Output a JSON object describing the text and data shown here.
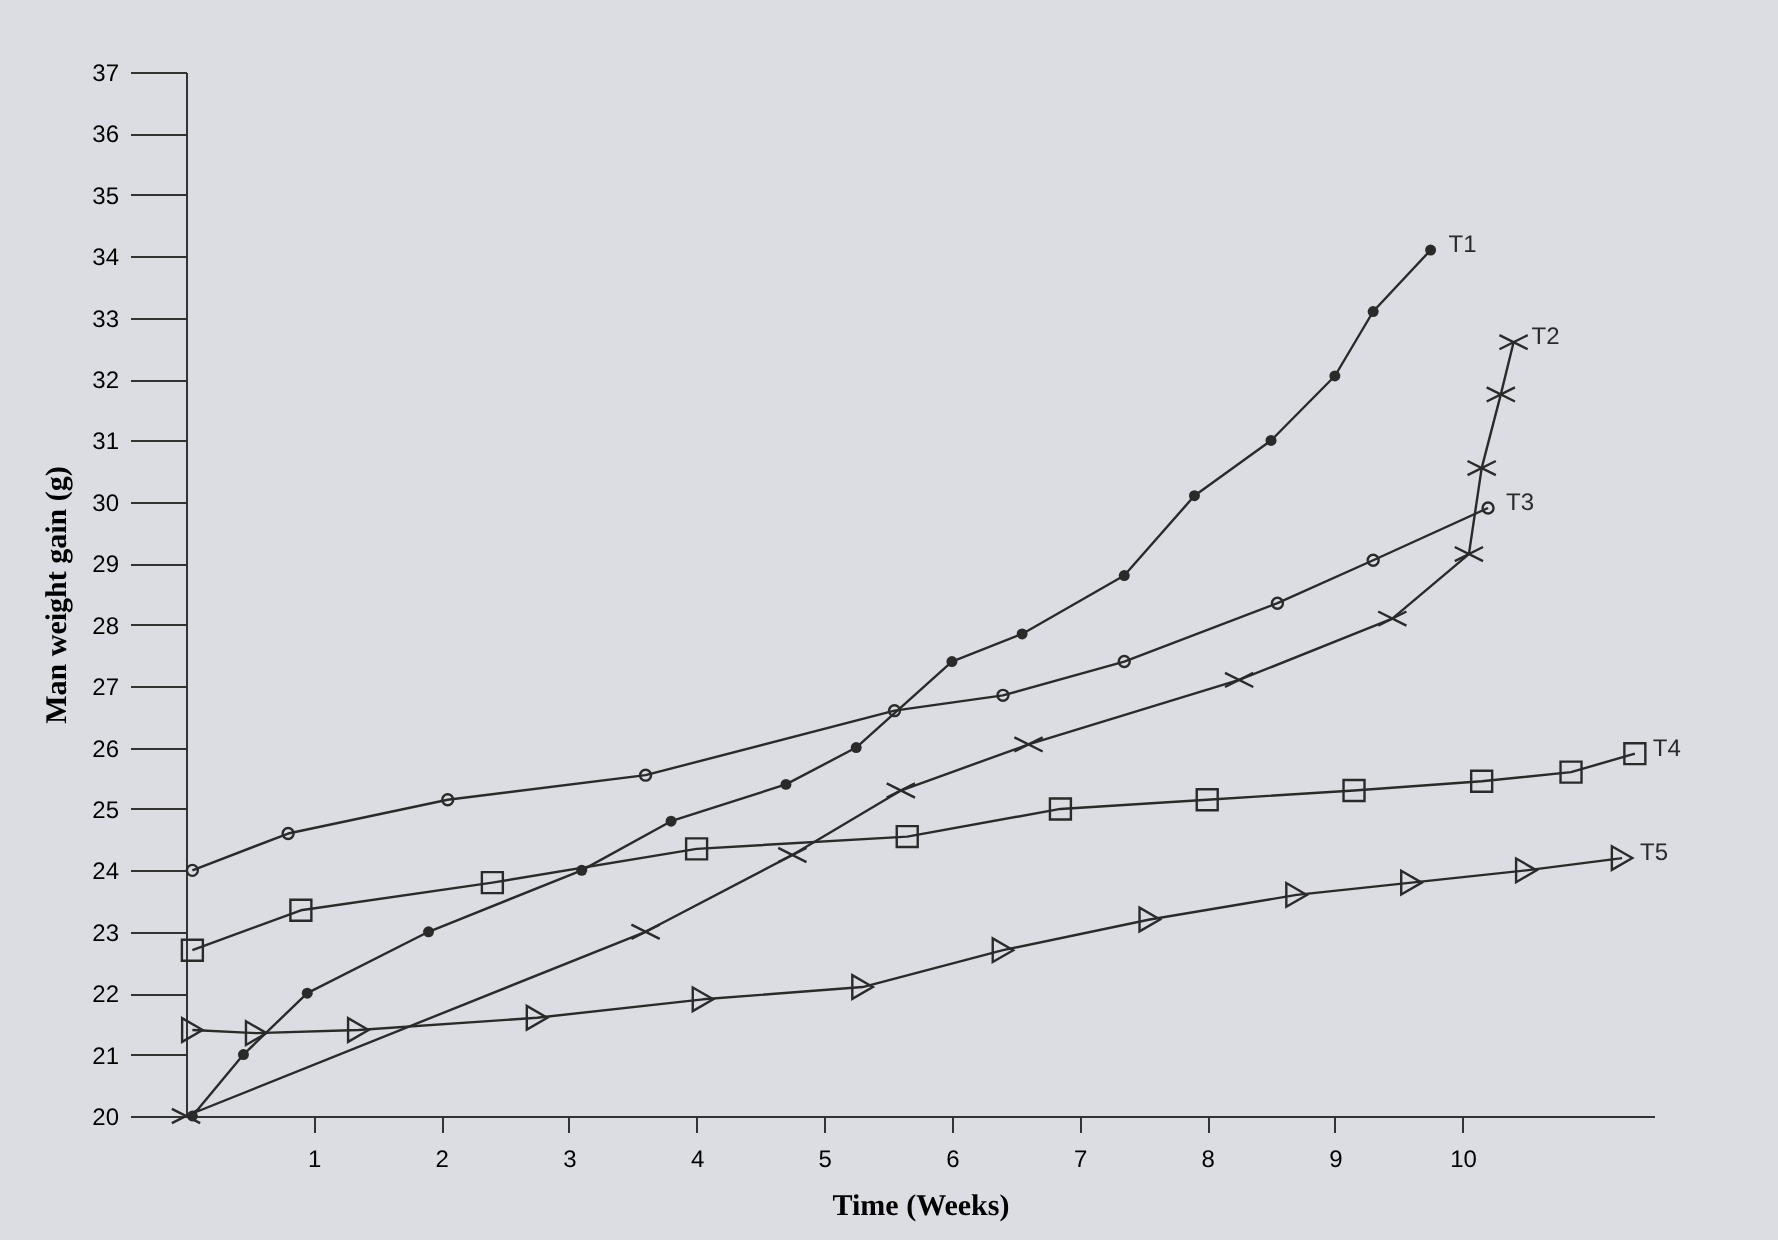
{
  "chart_data": {
    "type": "line",
    "xlabel": "Time (Weeks)",
    "ylabel": "Man weight gain (g)",
    "xlim": [
      0,
      11.5
    ],
    "xticks": [
      1,
      2,
      3,
      4,
      5,
      6,
      7,
      8,
      9,
      10
    ],
    "ylim": [
      20,
      37
    ],
    "yticks": [
      20,
      21,
      22,
      23,
      24,
      25,
      26,
      27,
      28,
      29,
      30,
      31,
      32,
      33,
      34,
      35,
      36,
      37
    ],
    "grid": false,
    "series": [
      {
        "name": "T1",
        "color": "#2a2a2a",
        "marker": "circle",
        "x": [
          0.05,
          0.45,
          0.95,
          1.9,
          3.1,
          3.8,
          4.7,
          5.25,
          6.0,
          6.55,
          7.35,
          7.9,
          8.5,
          9.0,
          9.3,
          9.75
        ],
        "values": [
          20,
          21,
          22,
          23,
          24,
          24.8,
          25.4,
          26,
          27.4,
          27.85,
          28.8,
          30.1,
          31,
          32.05,
          33.1,
          34.1
        ]
      },
      {
        "name": "T2",
        "color": "#2a2a2a",
        "marker": "cross",
        "x": [
          0,
          3.6,
          4.75,
          5.6,
          6.6,
          8.25,
          9.45,
          10.05,
          10.15,
          10.3,
          10.4
        ],
        "values": [
          20,
          23,
          24.25,
          25.3,
          26.05,
          27.1,
          28.1,
          29.15,
          30.55,
          31.75,
          32.6
        ]
      },
      {
        "name": "T3",
        "color": "#2a2a2a",
        "marker": "circle-open",
        "x": [
          0.05,
          0.8,
          2.05,
          3.6,
          5.55,
          6.4,
          7.35,
          8.55,
          9.3,
          10.2
        ],
        "values": [
          24,
          24.6,
          25.15,
          25.55,
          26.6,
          26.85,
          27.4,
          28.35,
          29.05,
          29.9
        ]
      },
      {
        "name": "T4",
        "color": "#2a2a2a",
        "marker": "square",
        "x": [
          0.05,
          0.9,
          2.4,
          4.0,
          5.65,
          6.85,
          8.0,
          9.15,
          10.15,
          10.85,
          11.35
        ],
        "values": [
          22.7,
          23.35,
          23.8,
          24.35,
          24.55,
          25.0,
          25.15,
          25.3,
          25.45,
          25.6,
          25.9
        ]
      },
      {
        "name": "T5",
        "color": "#2a2a2a",
        "marker": "triangle",
        "x": [
          0.05,
          0.55,
          1.35,
          2.75,
          4.05,
          5.3,
          6.4,
          7.55,
          8.7,
          9.6,
          10.5,
          11.25
        ],
        "values": [
          21.4,
          21.35,
          21.4,
          21.6,
          21.9,
          22.1,
          22.7,
          23.2,
          23.6,
          23.8,
          24.0,
          24.2
        ]
      }
    ]
  }
}
